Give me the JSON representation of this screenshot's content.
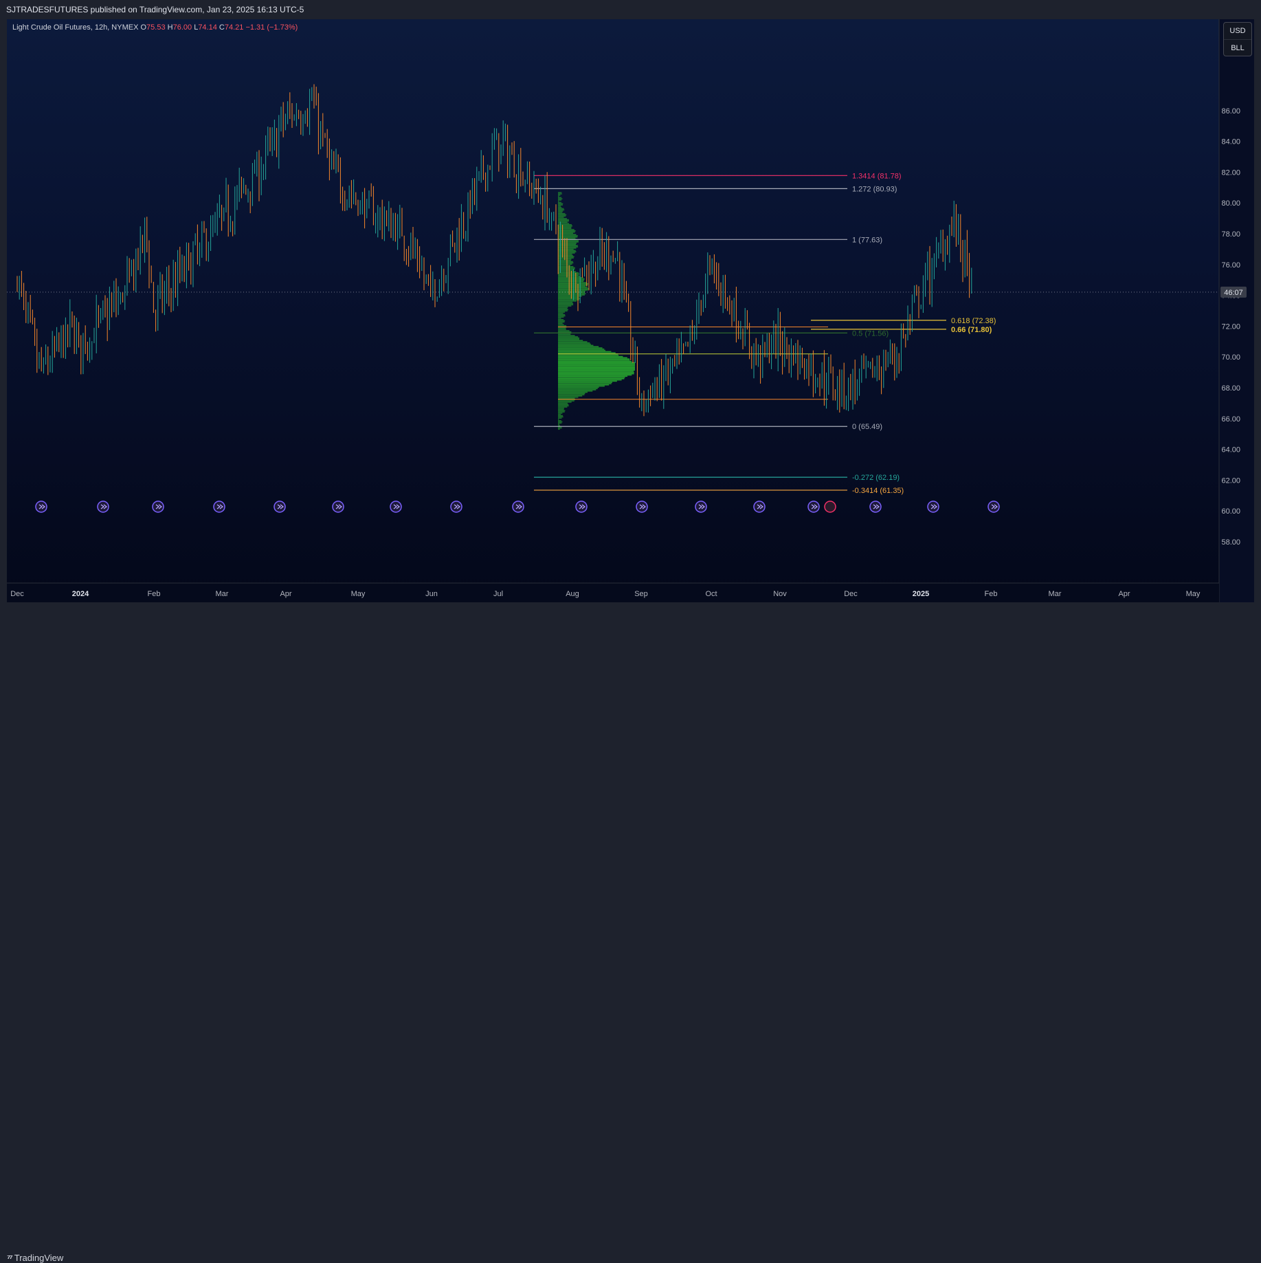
{
  "header": {
    "published": "SJTRADESFUTURES published on TradingView.com, Jan 23, 2025 16:13 UTC-5"
  },
  "legend": {
    "symbol": "Light Crude Oil Futures, 12h, NYMEX",
    "open_label": "O",
    "open": "75.53",
    "high_label": "H",
    "high": "76.00",
    "low_label": "L",
    "low": "74.14",
    "close_label": "C",
    "close": "74.21",
    "change": "−1.31 (−1.73%)"
  },
  "currency_box": {
    "currency": "USD",
    "unit": "BLL"
  },
  "countdown": "46:07",
  "footer": {
    "brand": "TradingView"
  },
  "colors": {
    "up": "#26a69a",
    "down": "#f5862b",
    "volume_profile": "#2bb52f",
    "fib_red": "#f23068",
    "fib_gray": "#a8acb8",
    "fib_gold": "#e8c238",
    "fib_teal": "#26a69a",
    "fib_orange": "#f5a640"
  },
  "chart_data": {
    "type": "candlestick",
    "title": "Light Crude Oil Futures, 12h, NYMEX",
    "xlabel": "",
    "ylabel": "",
    "x_tick_labels": [
      "Dec",
      "2024",
      "Feb",
      "Mar",
      "Apr",
      "May",
      "Jun",
      "Jul",
      "Aug",
      "Sep",
      "Oct",
      "Nov",
      "Dec",
      "2025",
      "Feb",
      "Mar",
      "Apr",
      "May"
    ],
    "y_tick_labels": [
      "58.00",
      "60.00",
      "62.00",
      "64.00",
      "66.00",
      "68.00",
      "70.00",
      "72.00",
      "74.00",
      "76.00",
      "78.00",
      "80.00",
      "82.00",
      "84.00",
      "86.00"
    ],
    "ylim": [
      56.8,
      88.4
    ],
    "price_path": [
      [
        "Dec",
        75.0
      ],
      [
        "2023-12-12",
        69.0
      ],
      [
        "2023-12-28",
        72.0
      ],
      [
        "2024",
        70.5
      ],
      [
        "2024-01-20",
        74.5
      ],
      [
        "2024-01-28",
        78.0
      ],
      [
        "Feb",
        73.0
      ],
      [
        "Mar",
        79.0
      ],
      [
        "2024-03-20",
        82.5
      ],
      [
        "Apr",
        85.5
      ],
      [
        "2024-04-12",
        86.5
      ],
      [
        "2024-04-20",
        82.0
      ],
      [
        "May",
        80.0
      ],
      [
        "2024-05-20",
        78.0
      ],
      [
        "Jun",
        74.0
      ],
      [
        "2024-06-20",
        80.5
      ],
      [
        "Jul",
        84.0
      ],
      [
        "2024-07-20",
        80.0
      ],
      [
        "Aug",
        75.0
      ],
      [
        "2024-08-20",
        77.0
      ],
      [
        "Sep",
        67.0
      ],
      [
        "2024-09-20",
        70.0
      ],
      [
        "Oct",
        76.0
      ],
      [
        "2024-10-20",
        70.0
      ],
      [
        "Nov",
        71.0
      ],
      [
        "2024-11-20",
        68.5
      ],
      [
        "Dec",
        68.0
      ],
      [
        "2024-12-20",
        70.0
      ],
      [
        "2025",
        74.0
      ],
      [
        "2025-01-15",
        79.0
      ],
      [
        "2025-01-23",
        74.21
      ]
    ],
    "last_price_label": "74.21",
    "fibonacci": [
      {
        "label": "1.3414 (81.78)",
        "value": 81.78,
        "color": "#f23068"
      },
      {
        "label": "1.272 (80.93)",
        "value": 80.93,
        "color": "#a8acb8"
      },
      {
        "label": "1 (77.63)",
        "value": 77.63,
        "color": "#a8acb8"
      },
      {
        "label": "0.618 (72.38)",
        "value": 72.38,
        "color": "#e8c238"
      },
      {
        "label": "0.66 (71.80)",
        "value": 71.8,
        "color": "#e8c238"
      },
      {
        "label": "0.5 (71.56)",
        "value": 71.56,
        "color": "#2e6b2e"
      },
      {
        "label": "0 (65.49)",
        "value": 65.49,
        "color": "#a8acb8"
      },
      {
        "label": "-0.272 (62.19)",
        "value": 62.19,
        "color": "#26a69a"
      },
      {
        "label": "-0.3414 (61.35)",
        "value": 61.35,
        "color": "#f5a640"
      }
    ],
    "horizontal_levels": [
      71.95,
      70.2,
      67.25
    ],
    "volume_profile_range": [
      65.3,
      80.7
    ],
    "volume_profile_poc": 69.3,
    "events_markers": 17,
    "grid": false
  }
}
